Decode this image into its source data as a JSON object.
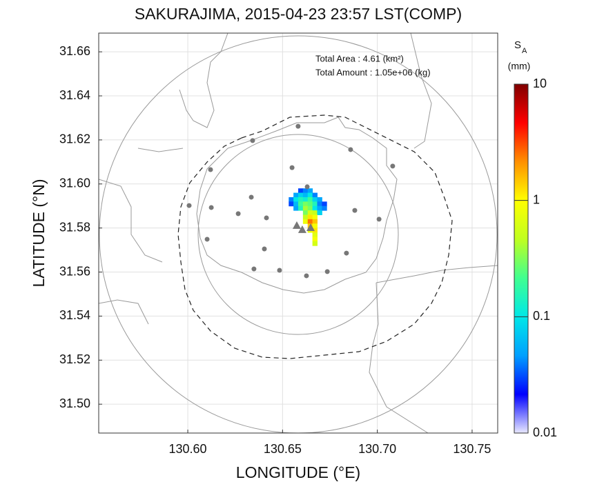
{
  "chart_data": {
    "type": "map",
    "title": "SAKURAJIMA, 2015-04-23 23:57 LST(COMP)",
    "xlabel": "LONGITUDE (°E)",
    "ylabel": "LATITUDE (°N)",
    "annotations": [
      "Total Area   : 4.61 (km²)",
      "Total Amount : 1.05e+06 (kg)"
    ],
    "colorbar_label": {
      "main": "S",
      "sub": "A",
      "unit": "(mm)"
    },
    "xlim": [
      130.553,
      130.7635
    ],
    "ylim": [
      31.4869,
      31.6685
    ],
    "xticks": [
      {
        "value": 130.6,
        "label": "130.60"
      },
      130.65,
      {
        "value": 130.7,
        "label": "130.70"
      },
      130.75
    ],
    "yticks": [
      {
        "value": 31.5,
        "label": "31.50"
      },
      31.52,
      31.54,
      31.56,
      31.58,
      {
        "value": 31.6,
        "label": "31.60"
      },
      31.62,
      31.64,
      31.66
    ],
    "grid": true,
    "clim": [
      0.01,
      10
    ],
    "cticks": [
      0.01,
      0.1,
      1,
      10
    ],
    "log_color": true,
    "colormap": [
      "#e8e8ff",
      "#0000ff",
      "#00a0ff",
      "#00e8e8",
      "#40ff90",
      "#c0ff20",
      "#ffff00",
      "#ff9000",
      "#ff0000",
      "#800000"
    ],
    "station_color": "#777777",
    "stations": [
      [
        130.6582,
        31.6262
      ],
      [
        130.6342,
        31.6197
      ],
      [
        130.6859,
        31.6156
      ],
      [
        130.655,
        31.6074
      ],
      [
        130.7081,
        31.6081
      ],
      [
        130.612,
        31.6065
      ],
      [
        130.663,
        31.5987
      ],
      [
        130.6007,
        31.5902
      ],
      [
        130.6124,
        31.5893
      ],
      [
        130.6335,
        31.594
      ],
      [
        130.6266,
        31.5865
      ],
      [
        130.6415,
        31.5846
      ],
      [
        130.6881,
        31.588
      ],
      [
        130.7009,
        31.584
      ],
      [
        130.6102,
        31.5749
      ],
      [
        130.6404,
        31.5705
      ],
      [
        130.6837,
        31.5686
      ],
      [
        130.6349,
        31.5614
      ],
      [
        130.6484,
        31.5608
      ],
      [
        130.6626,
        31.5583
      ],
      [
        130.6736,
        31.5602
      ]
    ],
    "vents": [
      [
        130.6575,
        31.5812
      ],
      [
        130.6604,
        31.5793
      ],
      [
        130.6648,
        31.5802
      ]
    ],
    "cells": [
      [
        130.6595,
        31.597,
        0.03
      ],
      [
        130.662,
        31.597,
        0.04
      ],
      [
        130.6645,
        31.597,
        0.05
      ],
      [
        130.657,
        31.595,
        0.05
      ],
      [
        130.6595,
        31.595,
        0.08
      ],
      [
        130.662,
        31.595,
        0.06
      ],
      [
        130.6645,
        31.595,
        0.1
      ],
      [
        130.667,
        31.595,
        0.04
      ],
      [
        130.6545,
        31.593,
        0.04
      ],
      [
        130.657,
        31.593,
        0.1
      ],
      [
        130.6595,
        31.593,
        0.15
      ],
      [
        130.662,
        31.593,
        0.12
      ],
      [
        130.6645,
        31.593,
        0.2
      ],
      [
        130.667,
        31.593,
        0.08
      ],
      [
        130.6695,
        31.593,
        0.05
      ],
      [
        130.6545,
        31.591,
        0.03
      ],
      [
        130.657,
        31.591,
        0.06
      ],
      [
        130.6595,
        31.591,
        0.2
      ],
      [
        130.662,
        31.591,
        0.3
      ],
      [
        130.6645,
        31.591,
        0.25
      ],
      [
        130.667,
        31.591,
        0.15
      ],
      [
        130.6695,
        31.591,
        0.04
      ],
      [
        130.672,
        31.591,
        0.03
      ],
      [
        130.657,
        31.589,
        0.05
      ],
      [
        130.6595,
        31.589,
        0.15
      ],
      [
        130.662,
        31.589,
        0.4
      ],
      [
        130.6645,
        31.589,
        0.3
      ],
      [
        130.667,
        31.589,
        0.1
      ],
      [
        130.6695,
        31.589,
        0.05
      ],
      [
        130.672,
        31.589,
        0.04
      ],
      [
        130.662,
        31.587,
        0.3
      ],
      [
        130.6645,
        31.587,
        0.6
      ],
      [
        130.667,
        31.587,
        0.5
      ],
      [
        130.6695,
        31.587,
        0.08
      ],
      [
        130.662,
        31.585,
        0.5
      ],
      [
        130.6645,
        31.585,
        1.2
      ],
      [
        130.667,
        31.585,
        0.9
      ],
      [
        130.662,
        31.583,
        0.8
      ],
      [
        130.6645,
        31.583,
        2.5
      ],
      [
        130.667,
        31.583,
        1.5
      ],
      [
        130.6645,
        31.581,
        1.5
      ],
      [
        130.667,
        31.581,
        0.9
      ],
      [
        130.6645,
        31.579,
        0.8
      ],
      [
        130.667,
        31.579,
        1.2
      ],
      [
        130.667,
        31.577,
        0.7
      ],
      [
        130.667,
        31.575,
        0.9
      ],
      [
        130.667,
        31.573,
        0.6
      ]
    ]
  }
}
